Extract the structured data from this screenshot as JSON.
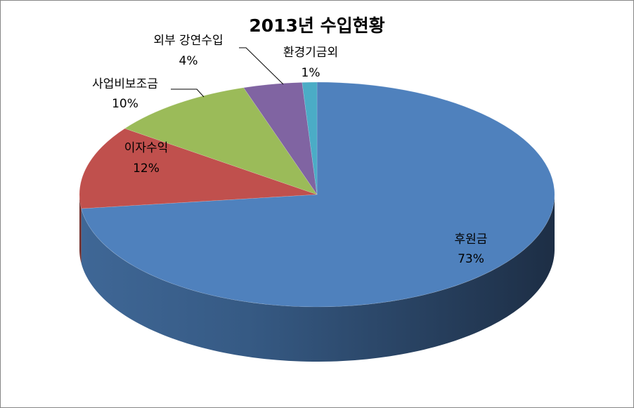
{
  "chart_data": {
    "type": "pie",
    "title": "2013년 수입현황",
    "three_d": true,
    "slices": [
      {
        "label": "후원금",
        "value": 73,
        "percent_label": "73%",
        "color": "#4F81BD"
      },
      {
        "label": "이자수익",
        "value": 12,
        "percent_label": "12%",
        "color": "#C0504D"
      },
      {
        "label": "사업비보조금",
        "value": 10,
        "percent_label": "10%",
        "color": "#9BBB59"
      },
      {
        "label": "외부 강연수입",
        "value": 4,
        "percent_label": "4%",
        "color": "#8064A2"
      },
      {
        "label": "환경기금외",
        "value": 1,
        "percent_label": "1%",
        "color": "#4BACC6"
      }
    ],
    "legend": "none"
  }
}
